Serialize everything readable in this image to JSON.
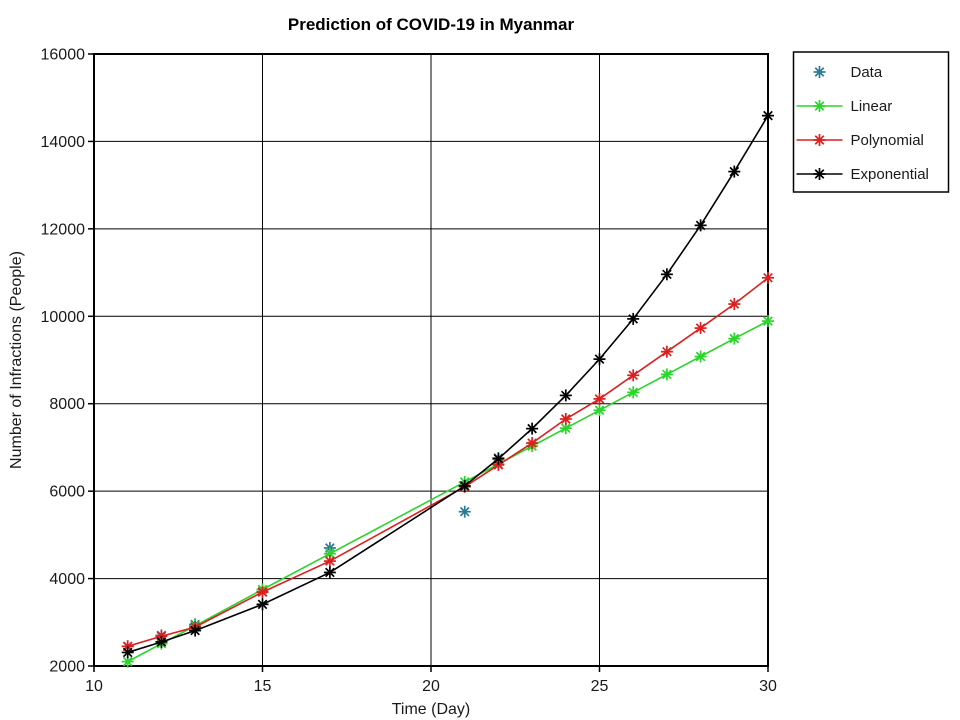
{
  "figure": {
    "background": "#ffffff"
  },
  "chart_data": {
    "type": "line",
    "title": "Prediction of COVID-19 in Myanmar",
    "xlabel": "Time (Day)",
    "ylabel": "Number of Infractions (People)",
    "xlim": [
      10,
      30
    ],
    "ylim": [
      2000,
      16000
    ],
    "xticks": [
      10,
      15,
      20,
      25,
      30
    ],
    "yticks": [
      2000,
      4000,
      6000,
      8000,
      10000,
      12000,
      14000,
      16000
    ],
    "grid": true,
    "marker": "asterisk",
    "legend": {
      "position": "top-right-outside",
      "entries": [
        "Data",
        "Linear",
        "Polynomial",
        "Exponential"
      ]
    },
    "series": [
      {
        "name": "Data",
        "color": "#2b7a93",
        "line": false,
        "x": [
          11,
          12,
          13,
          15,
          17,
          21,
          22
        ],
        "y": [
          2450,
          2700,
          2950,
          3700,
          4700,
          5530,
          6760
        ]
      },
      {
        "name": "Linear",
        "color": "#2bd42b",
        "line": true,
        "x": [
          11,
          12,
          13,
          15,
          17,
          21,
          22,
          23,
          24,
          25,
          26,
          27,
          28,
          29,
          30
        ],
        "y": [
          2100,
          2510,
          2920,
          3750,
          4570,
          6210,
          6620,
          7030,
          7440,
          7850,
          8260,
          8670,
          9080,
          9490,
          9890
        ]
      },
      {
        "name": "Polynomial",
        "color": "#dc1f1f",
        "line": true,
        "x": [
          11,
          12,
          13,
          15,
          17,
          21,
          22,
          23,
          24,
          25,
          26,
          27,
          28,
          29,
          30
        ],
        "y": [
          2450,
          2680,
          2890,
          3690,
          4400,
          6100,
          6600,
          7100,
          7650,
          8110,
          8650,
          9190,
          9730,
          10280,
          10880
        ]
      },
      {
        "name": "Exponential",
        "color": "#000000",
        "line": true,
        "x": [
          11,
          12,
          13,
          15,
          17,
          21,
          22,
          23,
          24,
          25,
          26,
          27,
          28,
          29,
          30
        ],
        "y": [
          2310,
          2550,
          2810,
          3410,
          4140,
          6120,
          6740,
          7430,
          8190,
          9020,
          9940,
          10960,
          12080,
          13310,
          14590
        ]
      }
    ]
  }
}
